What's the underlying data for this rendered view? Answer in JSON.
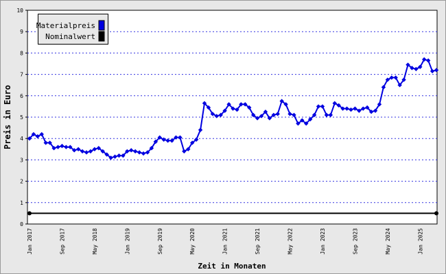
{
  "chart_data": {
    "type": "line",
    "xlabel": "Zeit in Monaten",
    "ylabel": "Preis in Euro",
    "categories": [
      "Jan 2017",
      null,
      null,
      null,
      null,
      null,
      null,
      null,
      "Sep 2017",
      null,
      null,
      null,
      null,
      null,
      null,
      null,
      "May 2018",
      null,
      null,
      null,
      null,
      null,
      null,
      null,
      "Jan 2019",
      null,
      null,
      null,
      null,
      null,
      null,
      null,
      "Sep 2019",
      null,
      null,
      null,
      null,
      null,
      null,
      null,
      "May 2020",
      null,
      null,
      null,
      null,
      null,
      null,
      null,
      "Jan 2021",
      null,
      null,
      null,
      null,
      null,
      null,
      null,
      "Sep 2021",
      null,
      null,
      null,
      null,
      null,
      null,
      null,
      "May 2022",
      null,
      null,
      null,
      null,
      null,
      null,
      null,
      "Jan 2023",
      null,
      null,
      null,
      null,
      null,
      null,
      null,
      "Sep 2023",
      null,
      null,
      null,
      null,
      null,
      null,
      null,
      "May 2024",
      null,
      null,
      null,
      null,
      null,
      null,
      null,
      "Jan 2025",
      null,
      null,
      null,
      null
    ],
    "series": [
      {
        "name": "Materialpreis",
        "color": "#0000e0",
        "markers": "all",
        "values": [
          4.0,
          4.2,
          4.1,
          4.2,
          3.8,
          3.8,
          3.55,
          3.6,
          3.65,
          3.6,
          3.6,
          3.45,
          3.5,
          3.4,
          3.35,
          3.4,
          3.5,
          3.55,
          3.4,
          3.25,
          3.1,
          3.15,
          3.2,
          3.2,
          3.4,
          3.45,
          3.4,
          3.35,
          3.3,
          3.35,
          3.55,
          3.85,
          4.05,
          3.95,
          3.9,
          3.9,
          4.05,
          4.05,
          3.4,
          3.5,
          3.8,
          3.95,
          4.4,
          5.65,
          5.45,
          5.15,
          5.05,
          5.1,
          5.3,
          5.6,
          5.4,
          5.35,
          5.6,
          5.6,
          5.45,
          5.1,
          4.95,
          5.05,
          5.25,
          4.95,
          5.1,
          5.15,
          5.75,
          5.6,
          5.15,
          5.1,
          4.7,
          4.85,
          4.7,
          4.9,
          5.1,
          5.5,
          5.5,
          5.1,
          5.1,
          5.65,
          5.55,
          5.4,
          5.4,
          5.35,
          5.4,
          5.3,
          5.4,
          5.45,
          5.25,
          5.3,
          5.6,
          6.4,
          6.75,
          6.85,
          6.85,
          6.5,
          6.75,
          7.45,
          7.3,
          7.25,
          7.35,
          7.7,
          7.65,
          7.15,
          7.2
        ]
      },
      {
        "name": "Nominalwert",
        "color": "#000000",
        "markers": "ends",
        "values": [
          0.5,
          0.5,
          0.5,
          0.5,
          0.5,
          0.5,
          0.5,
          0.5,
          0.5,
          0.5,
          0.5,
          0.5,
          0.5,
          0.5,
          0.5,
          0.5,
          0.5,
          0.5,
          0.5,
          0.5,
          0.5,
          0.5,
          0.5,
          0.5,
          0.5,
          0.5,
          0.5,
          0.5,
          0.5,
          0.5,
          0.5,
          0.5,
          0.5,
          0.5,
          0.5,
          0.5,
          0.5,
          0.5,
          0.5,
          0.5,
          0.5,
          0.5,
          0.5,
          0.5,
          0.5,
          0.5,
          0.5,
          0.5,
          0.5,
          0.5,
          0.5,
          0.5,
          0.5,
          0.5,
          0.5,
          0.5,
          0.5,
          0.5,
          0.5,
          0.5,
          0.5,
          0.5,
          0.5,
          0.5,
          0.5,
          0.5,
          0.5,
          0.5,
          0.5,
          0.5,
          0.5,
          0.5,
          0.5,
          0.5,
          0.5,
          0.5,
          0.5,
          0.5,
          0.5,
          0.5,
          0.5,
          0.5,
          0.5,
          0.5,
          0.5,
          0.5,
          0.5,
          0.5,
          0.5,
          0.5,
          0.5,
          0.5,
          0.5,
          0.5,
          0.5,
          0.5,
          0.5,
          0.5,
          0.5,
          0.5,
          0.5
        ]
      }
    ],
    "ylim": [
      0,
      10
    ],
    "yticks": [
      0,
      1,
      2,
      3,
      4,
      5,
      6,
      7,
      8,
      9,
      10
    ],
    "grid": true,
    "legend": "top-left"
  }
}
